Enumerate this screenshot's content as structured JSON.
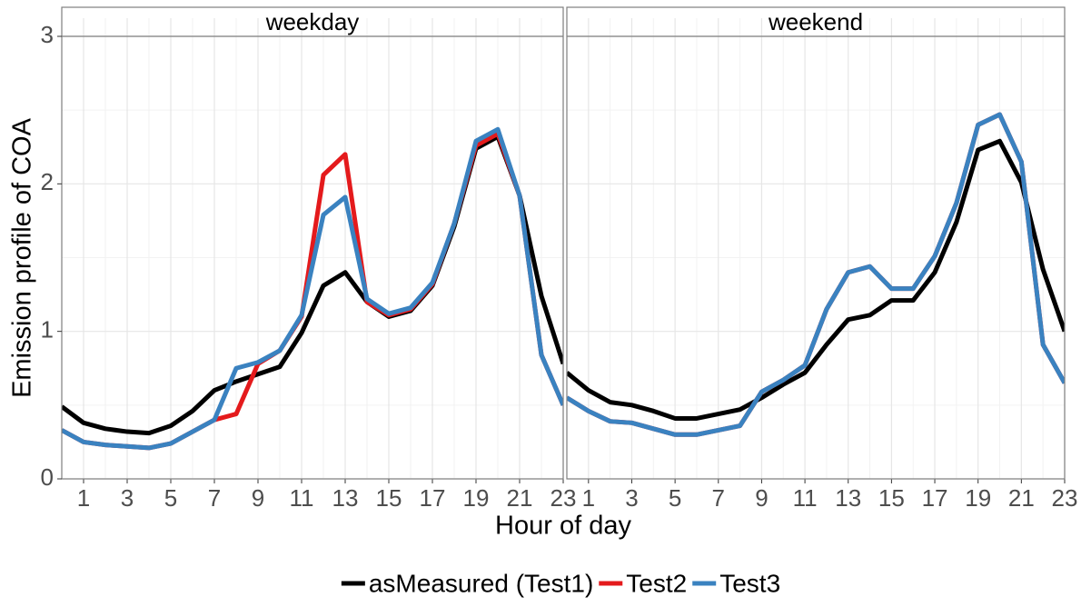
{
  "chart_data": {
    "type": "line",
    "xlabel": "Hour of day",
    "ylabel": "Emission profile of COA",
    "x": [
      0,
      1,
      2,
      3,
      4,
      5,
      6,
      7,
      8,
      9,
      10,
      11,
      12,
      13,
      14,
      15,
      16,
      17,
      18,
      19,
      20,
      21,
      22,
      23
    ],
    "xlim": [
      0,
      23
    ],
    "xticks": [
      1,
      3,
      5,
      7,
      9,
      11,
      13,
      15,
      17,
      19,
      21,
      23
    ],
    "ylim": [
      0,
      3
    ],
    "yticks": [
      0,
      1,
      2,
      3
    ],
    "grid": true,
    "legend": "bottom",
    "series": [
      {
        "name": "asMeasured (Test1)",
        "color": "#000000"
      },
      {
        "name": "Test2",
        "color": "#e41a1c"
      },
      {
        "name": "Test3",
        "color": "#3a82c0"
      }
    ],
    "facets": [
      {
        "title": "weekday",
        "values": [
          [
            0.49,
            0.38,
            0.34,
            0.32,
            0.31,
            0.36,
            0.46,
            0.6,
            0.66,
            0.71,
            0.76,
            0.99,
            1.31,
            1.4,
            1.2,
            1.1,
            1.14,
            1.31,
            1.71,
            2.24,
            2.32,
            1.92,
            1.24,
            0.78
          ],
          [
            0.33,
            0.25,
            0.23,
            0.22,
            0.21,
            0.24,
            0.32,
            0.4,
            0.44,
            0.78,
            0.87,
            1.1,
            2.06,
            2.2,
            1.2,
            1.11,
            1.15,
            1.32,
            1.73,
            2.26,
            2.34,
            1.92,
            0.84,
            0.5
          ],
          [
            0.33,
            0.25,
            0.23,
            0.22,
            0.21,
            0.24,
            0.32,
            0.4,
            0.75,
            0.79,
            0.87,
            1.11,
            1.79,
            1.91,
            1.22,
            1.12,
            1.16,
            1.33,
            1.73,
            2.29,
            2.37,
            1.92,
            0.84,
            0.5
          ]
        ]
      },
      {
        "title": "weekend",
        "values": [
          [
            0.72,
            0.6,
            0.52,
            0.5,
            0.46,
            0.41,
            0.41,
            0.44,
            0.47,
            0.55,
            0.64,
            0.72,
            0.91,
            1.08,
            1.11,
            1.21,
            1.21,
            1.4,
            1.74,
            2.23,
            2.29,
            2.01,
            1.42,
            1.0
          ],
          [
            0.55,
            0.46,
            0.39,
            0.38,
            0.34,
            0.3,
            0.3,
            0.33,
            0.36,
            0.59,
            0.67,
            0.77,
            1.15,
            1.4,
            1.44,
            1.29,
            1.29,
            1.51,
            1.87,
            2.4,
            2.47,
            2.15,
            0.91,
            0.65
          ],
          [
            0.55,
            0.46,
            0.39,
            0.38,
            0.34,
            0.3,
            0.3,
            0.33,
            0.36,
            0.59,
            0.67,
            0.77,
            1.15,
            1.4,
            1.44,
            1.29,
            1.29,
            1.51,
            1.87,
            2.4,
            2.47,
            2.15,
            0.91,
            0.65
          ]
        ]
      }
    ]
  }
}
